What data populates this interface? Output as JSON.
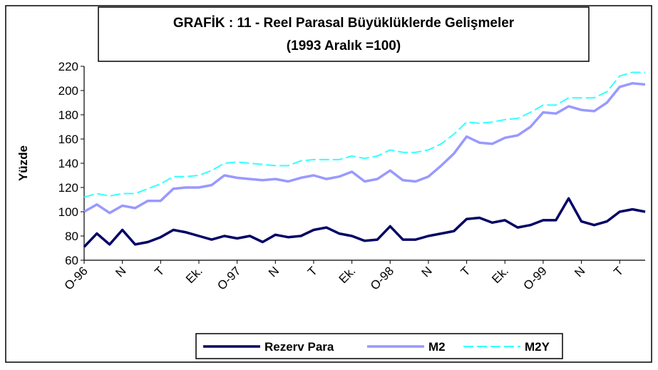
{
  "chart_data": {
    "type": "line",
    "title": "GRAFİK : 11 - Reel Parasal Büyüklüklerde Gelişmeler",
    "subtitle": "(1993 Aralık =100)",
    "y_label": "Yüzde",
    "categories": [
      "O-96",
      null,
      null,
      "N",
      null,
      null,
      "T",
      null,
      null,
      "Ek.",
      null,
      null,
      "O-97",
      null,
      null,
      "N",
      null,
      null,
      "T",
      null,
      null,
      "Ek.",
      null,
      null,
      "O-98",
      null,
      null,
      "N",
      null,
      null,
      "T",
      null,
      null,
      "Ek.",
      null,
      null,
      "O-99",
      null,
      null,
      "N",
      null,
      null,
      "T",
      null,
      null
    ],
    "series": [
      {
        "name": "Rezerv Para",
        "color": "#000066",
        "values": [
          71,
          82,
          73,
          85,
          73,
          75,
          79,
          85,
          83,
          80,
          77,
          80,
          78,
          80,
          75,
          81,
          79,
          80,
          85,
          87,
          82,
          80,
          76,
          77,
          88,
          77,
          77,
          80,
          82,
          84,
          94,
          95,
          91,
          93,
          87,
          89,
          93,
          93,
          111,
          92,
          89,
          92,
          100,
          102,
          100
        ]
      },
      {
        "name": "M2",
        "color": "#9999ff",
        "values": [
          100,
          106,
          99,
          105,
          103,
          109,
          109,
          119,
          120,
          120,
          122,
          130,
          128,
          127,
          126,
          127,
          125,
          128,
          130,
          127,
          129,
          133,
          125,
          127,
          134,
          126,
          125,
          129,
          138,
          148,
          162,
          157,
          156,
          161,
          163,
          170,
          182,
          181,
          187,
          184,
          183,
          190,
          203,
          206,
          205
        ]
      },
      {
        "name": "M2Y",
        "color": "#33ffff",
        "values": [
          112,
          115,
          113,
          115,
          115,
          119,
          123,
          129,
          129,
          130,
          134,
          140,
          141,
          140,
          139,
          138,
          138,
          142,
          143,
          143,
          143,
          146,
          144,
          146,
          151,
          149,
          149,
          151,
          156,
          164,
          174,
          173,
          174,
          176,
          177,
          182,
          188,
          188,
          194,
          194,
          194,
          199,
          212,
          215,
          215
        ]
      }
    ],
    "ylim": [
      60,
      220
    ],
    "yticks": [
      60,
      80,
      100,
      120,
      140,
      160,
      180,
      200,
      220
    ],
    "grid": false,
    "legend": "bottom"
  }
}
